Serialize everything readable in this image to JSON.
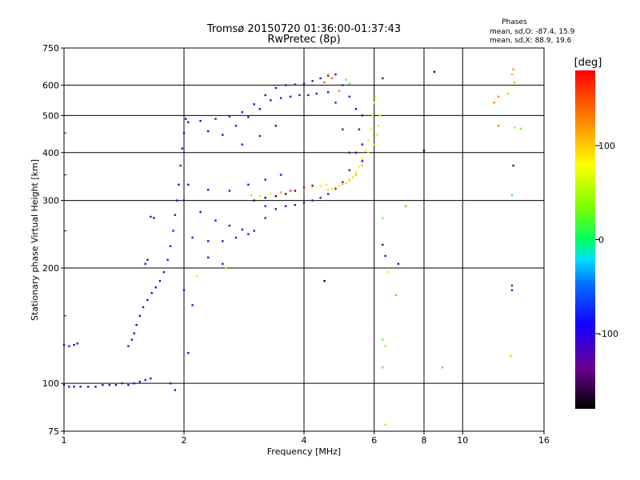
{
  "title": {
    "line1": "Tromsø 20150720 01:36:00-01:37:43",
    "line2": "RwPretec (8p)"
  },
  "phase_info": {
    "heading": "Phases",
    "line_o": "mean, sd,O: -87.4, 15.9",
    "line_x": "mean, sd,X:  88.9, 19.6"
  },
  "colorbar": {
    "unit": "[deg]",
    "ticks": [
      "100",
      "0",
      "-100"
    ],
    "tick_values": [
      100,
      0,
      -100
    ],
    "range": [
      -180,
      180
    ]
  },
  "chart_data": {
    "type": "scatter",
    "xlabel": "Frequency [MHz]",
    "ylabel": "Stationary phase Virtual Height [km]",
    "x_scale": "log2",
    "y_scale": "log",
    "xlim": [
      1,
      16
    ],
    "ylim": [
      75,
      750
    ],
    "x_ticks": [
      1,
      2,
      4,
      6,
      8,
      10,
      16
    ],
    "x_tick_labels": [
      "1",
      "2",
      "4",
      "6",
      "8",
      "10",
      "16"
    ],
    "y_ticks": [
      75,
      100,
      200,
      300,
      400,
      500,
      600,
      750
    ],
    "y_tick_labels": [
      "75",
      "100",
      "200",
      "300",
      "400",
      "500",
      "600",
      "750"
    ],
    "grid": true,
    "points": [
      {
        "f": 1.0,
        "h": 99,
        "p": -110
      },
      {
        "f": 1.03,
        "h": 98,
        "p": -110
      },
      {
        "f": 1.06,
        "h": 98,
        "p": -110
      },
      {
        "f": 1.1,
        "h": 98,
        "p": -110
      },
      {
        "f": 1.15,
        "h": 98,
        "p": -110
      },
      {
        "f": 1.2,
        "h": 98,
        "p": -110
      },
      {
        "f": 1.25,
        "h": 99,
        "p": -110
      },
      {
        "f": 1.3,
        "h": 99,
        "p": -110
      },
      {
        "f": 1.35,
        "h": 99,
        "p": -110
      },
      {
        "f": 1.4,
        "h": 100,
        "p": -110
      },
      {
        "f": 1.45,
        "h": 99,
        "p": -110
      },
      {
        "f": 1.5,
        "h": 100,
        "p": -110
      },
      {
        "f": 1.55,
        "h": 101,
        "p": -110
      },
      {
        "f": 1.6,
        "h": 102,
        "p": -110
      },
      {
        "f": 1.65,
        "h": 103,
        "p": -110
      },
      {
        "f": 1.0,
        "h": 126,
        "p": -110
      },
      {
        "f": 1.03,
        "h": 125,
        "p": -110
      },
      {
        "f": 1.06,
        "h": 126,
        "p": -110
      },
      {
        "f": 1.08,
        "h": 127,
        "p": -110
      },
      {
        "f": 1.45,
        "h": 125,
        "p": -110
      },
      {
        "f": 1.48,
        "h": 130,
        "p": -110
      },
      {
        "f": 1.5,
        "h": 135,
        "p": -110
      },
      {
        "f": 1.52,
        "h": 142,
        "p": -110
      },
      {
        "f": 1.55,
        "h": 150,
        "p": -110
      },
      {
        "f": 1.58,
        "h": 158,
        "p": -110
      },
      {
        "f": 1.62,
        "h": 165,
        "p": -110
      },
      {
        "f": 1.66,
        "h": 172,
        "p": -110
      },
      {
        "f": 1.7,
        "h": 178,
        "p": -110
      },
      {
        "f": 1.74,
        "h": 185,
        "p": -110
      },
      {
        "f": 1.78,
        "h": 195,
        "p": -110
      },
      {
        "f": 1.82,
        "h": 210,
        "p": -110
      },
      {
        "f": 1.85,
        "h": 228,
        "p": -110
      },
      {
        "f": 1.88,
        "h": 250,
        "p": -110
      },
      {
        "f": 1.9,
        "h": 275,
        "p": -110
      },
      {
        "f": 1.92,
        "h": 300,
        "p": -110
      },
      {
        "f": 1.94,
        "h": 330,
        "p": -110
      },
      {
        "f": 1.96,
        "h": 370,
        "p": -110
      },
      {
        "f": 1.98,
        "h": 410,
        "p": -110
      },
      {
        "f": 2.0,
        "h": 450,
        "p": -110
      },
      {
        "f": 2.02,
        "h": 490,
        "p": -110
      },
      {
        "f": 1.6,
        "h": 205,
        "p": -110
      },
      {
        "f": 1.62,
        "h": 210,
        "p": -110
      },
      {
        "f": 1.65,
        "h": 272,
        "p": -110
      },
      {
        "f": 1.68,
        "h": 270,
        "p": -110
      },
      {
        "f": 2.05,
        "h": 480,
        "p": -110
      },
      {
        "f": 2.2,
        "h": 484,
        "p": -110
      },
      {
        "f": 2.4,
        "h": 490,
        "p": -110
      },
      {
        "f": 2.6,
        "h": 497,
        "p": -110
      },
      {
        "f": 2.8,
        "h": 510,
        "p": -110
      },
      {
        "f": 3.0,
        "h": 535,
        "p": -110
      },
      {
        "f": 3.2,
        "h": 565,
        "p": -110
      },
      {
        "f": 3.4,
        "h": 590,
        "p": -110
      },
      {
        "f": 3.6,
        "h": 600,
        "p": -110
      },
      {
        "f": 3.8,
        "h": 602,
        "p": -110
      },
      {
        "f": 4.0,
        "h": 605,
        "p": -110
      },
      {
        "f": 4.2,
        "h": 615,
        "p": -110
      },
      {
        "f": 4.4,
        "h": 625,
        "p": -110
      },
      {
        "f": 4.6,
        "h": 635,
        "p": -110
      },
      {
        "f": 4.8,
        "h": 640,
        "p": -110
      },
      {
        "f": 5.0,
        "h": 600,
        "p": -110
      },
      {
        "f": 5.2,
        "h": 560,
        "p": -110
      },
      {
        "f": 5.4,
        "h": 520,
        "p": -110
      },
      {
        "f": 5.5,
        "h": 460,
        "p": -120
      },
      {
        "f": 5.6,
        "h": 420,
        "p": -120
      },
      {
        "f": 5.6,
        "h": 380,
        "p": -120
      },
      {
        "f": 2.3,
        "h": 455,
        "p": -110
      },
      {
        "f": 2.5,
        "h": 445,
        "p": -110
      },
      {
        "f": 2.7,
        "h": 470,
        "p": -110
      },
      {
        "f": 2.9,
        "h": 495,
        "p": -110
      },
      {
        "f": 3.1,
        "h": 520,
        "p": -110
      },
      {
        "f": 3.3,
        "h": 548,
        "p": -110
      },
      {
        "f": 3.5,
        "h": 555,
        "p": -120
      },
      {
        "f": 3.7,
        "h": 560,
        "p": -120
      },
      {
        "f": 3.9,
        "h": 565,
        "p": -120
      },
      {
        "f": 4.1,
        "h": 565,
        "p": -120
      },
      {
        "f": 4.3,
        "h": 570,
        "p": -120
      },
      {
        "f": 4.6,
        "h": 575,
        "p": -120
      },
      {
        "f": 4.8,
        "h": 540,
        "p": -120
      },
      {
        "f": 5.0,
        "h": 460,
        "p": -130
      },
      {
        "f": 5.2,
        "h": 400,
        "p": -140
      },
      {
        "f": 2.0,
        "h": 300,
        "p": -110
      },
      {
        "f": 2.2,
        "h": 280,
        "p": -110
      },
      {
        "f": 2.4,
        "h": 266,
        "p": -110
      },
      {
        "f": 2.6,
        "h": 258,
        "p": -120
      },
      {
        "f": 2.8,
        "h": 252,
        "p": -120
      },
      {
        "f": 3.0,
        "h": 250,
        "p": -120
      },
      {
        "f": 3.2,
        "h": 270,
        "p": -130
      },
      {
        "f": 3.4,
        "h": 285,
        "p": -130
      },
      {
        "f": 3.6,
        "h": 290,
        "p": -130
      },
      {
        "f": 3.8,
        "h": 292,
        "p": -120
      },
      {
        "f": 4.0,
        "h": 296,
        "p": -120
      },
      {
        "f": 4.2,
        "h": 300,
        "p": -120
      },
      {
        "f": 4.4,
        "h": 305,
        "p": -130
      },
      {
        "f": 4.6,
        "h": 312,
        "p": -130
      },
      {
        "f": 4.8,
        "h": 322,
        "p": -140
      },
      {
        "f": 5.0,
        "h": 335,
        "p": -140
      },
      {
        "f": 5.2,
        "h": 360,
        "p": -140
      },
      {
        "f": 5.4,
        "h": 400,
        "p": -150
      },
      {
        "f": 5.6,
        "h": 500,
        "p": -150
      },
      {
        "f": 2.1,
        "h": 240,
        "p": -110
      },
      {
        "f": 2.3,
        "h": 235,
        "p": -110
      },
      {
        "f": 2.5,
        "h": 235,
        "p": -110
      },
      {
        "f": 2.7,
        "h": 240,
        "p": -110
      },
      {
        "f": 2.9,
        "h": 245,
        "p": -110
      },
      {
        "f": 3.2,
        "h": 290,
        "p": -120
      },
      {
        "f": 2.05,
        "h": 330,
        "p": -110
      },
      {
        "f": 2.3,
        "h": 320,
        "p": -110
      },
      {
        "f": 2.6,
        "h": 318,
        "p": -110
      },
      {
        "f": 2.9,
        "h": 330,
        "p": -110
      },
      {
        "f": 3.2,
        "h": 340,
        "p": -110
      },
      {
        "f": 3.5,
        "h": 350,
        "p": -110
      },
      {
        "f": 3.0,
        "h": 300,
        "p": -150
      },
      {
        "f": 3.2,
        "h": 305,
        "p": -160
      },
      {
        "f": 3.4,
        "h": 308,
        "p": -160
      },
      {
        "f": 3.6,
        "h": 312,
        "p": -150
      },
      {
        "f": 3.8,
        "h": 318,
        "p": -150
      },
      {
        "f": 4.0,
        "h": 324,
        "p": -150
      },
      {
        "f": 4.2,
        "h": 328,
        "p": -150
      },
      {
        "f": 2.95,
        "h": 310,
        "p": 40
      },
      {
        "f": 3.1,
        "h": 308,
        "p": 60
      },
      {
        "f": 3.3,
        "h": 312,
        "p": 80
      },
      {
        "f": 3.5,
        "h": 315,
        "p": 120
      },
      {
        "f": 3.7,
        "h": 318,
        "p": 150
      },
      {
        "f": 4.0,
        "h": 322,
        "p": 140
      },
      {
        "f": 4.2,
        "h": 325,
        "p": 100
      },
      {
        "f": 4.4,
        "h": 328,
        "p": 90
      },
      {
        "f": 4.55,
        "h": 330,
        "p": 90
      },
      {
        "f": 4.6,
        "h": 320,
        "p": 90
      },
      {
        "f": 4.7,
        "h": 322,
        "p": 92
      },
      {
        "f": 4.8,
        "h": 325,
        "p": 93
      },
      {
        "f": 4.9,
        "h": 328,
        "p": 95
      },
      {
        "f": 5.0,
        "h": 330,
        "p": 95
      },
      {
        "f": 5.1,
        "h": 333,
        "p": 95
      },
      {
        "f": 5.2,
        "h": 338,
        "p": 94
      },
      {
        "f": 5.3,
        "h": 345,
        "p": 94
      },
      {
        "f": 5.4,
        "h": 355,
        "p": 92
      },
      {
        "f": 5.5,
        "h": 368,
        "p": 90
      },
      {
        "f": 5.6,
        "h": 385,
        "p": 90
      },
      {
        "f": 5.7,
        "h": 405,
        "p": 88
      },
      {
        "f": 5.8,
        "h": 430,
        "p": 85
      },
      {
        "f": 5.9,
        "h": 460,
        "p": 85
      },
      {
        "f": 5.95,
        "h": 500,
        "p": 80
      },
      {
        "f": 6.0,
        "h": 540,
        "p": 80
      },
      {
        "f": 6.05,
        "h": 560,
        "p": 85
      },
      {
        "f": 5.2,
        "h": 340,
        "p": 100
      },
      {
        "f": 5.4,
        "h": 350,
        "p": 110
      },
      {
        "f": 5.6,
        "h": 370,
        "p": 110
      },
      {
        "f": 5.8,
        "h": 400,
        "p": 95
      },
      {
        "f": 6.0,
        "h": 420,
        "p": 95
      },
      {
        "f": 6.1,
        "h": 445,
        "p": 90
      },
      {
        "f": 6.15,
        "h": 470,
        "p": 90
      },
      {
        "f": 6.2,
        "h": 500,
        "p": 90
      },
      {
        "f": 4.6,
        "h": 640,
        "p": 120
      },
      {
        "f": 4.7,
        "h": 625,
        "p": 140
      },
      {
        "f": 4.5,
        "h": 610,
        "p": 150
      },
      {
        "f": 4.9,
        "h": 580,
        "p": 130
      },
      {
        "f": 5.1,
        "h": 620,
        "p": 10
      },
      {
        "f": 5.2,
        "h": 605,
        "p": 20
      },
      {
        "f": 6.3,
        "h": 270,
        "p": 20
      },
      {
        "f": 6.3,
        "h": 230,
        "p": -150
      },
      {
        "f": 6.4,
        "h": 215,
        "p": -110
      },
      {
        "f": 6.5,
        "h": 195,
        "p": 90
      },
      {
        "f": 6.3,
        "h": 130,
        "p": 20
      },
      {
        "f": 6.3,
        "h": 110,
        "p": 20
      },
      {
        "f": 6.4,
        "h": 125,
        "p": 100
      },
      {
        "f": 6.4,
        "h": 78,
        "p": 100
      },
      {
        "f": 6.8,
        "h": 170,
        "p": 120
      },
      {
        "f": 6.9,
        "h": 205,
        "p": -150
      },
      {
        "f": 6.3,
        "h": 625,
        "p": -150
      },
      {
        "f": 7.2,
        "h": 290,
        "p": 120
      },
      {
        "f": 4.5,
        "h": 185,
        "p": -170
      },
      {
        "f": 8.0,
        "h": 405,
        "p": -170
      },
      {
        "f": 8.5,
        "h": 650,
        "p": -160
      },
      {
        "f": 8.9,
        "h": 110,
        "p": 10
      },
      {
        "f": 12.0,
        "h": 540,
        "p": 130
      },
      {
        "f": 12.3,
        "h": 560,
        "p": 130
      },
      {
        "f": 12.3,
        "h": 470,
        "p": 130
      },
      {
        "f": 13.0,
        "h": 570,
        "p": 100
      },
      {
        "f": 13.3,
        "h": 640,
        "p": 110
      },
      {
        "f": 13.4,
        "h": 660,
        "p": 120
      },
      {
        "f": 13.5,
        "h": 610,
        "p": 120
      },
      {
        "f": 13.5,
        "h": 465,
        "p": 40
      },
      {
        "f": 14.0,
        "h": 462,
        "p": 30
      },
      {
        "f": 13.4,
        "h": 370,
        "p": -150
      },
      {
        "f": 13.3,
        "h": 310,
        "p": 10
      },
      {
        "f": 13.3,
        "h": 180,
        "p": -130
      },
      {
        "f": 13.3,
        "h": 175,
        "p": -130
      },
      {
        "f": 13.2,
        "h": 118,
        "p": 100
      },
      {
        "f": 1.85,
        "h": 100,
        "p": -110
      },
      {
        "f": 1.9,
        "h": 96,
        "p": -110
      },
      {
        "f": 2.05,
        "h": 120,
        "p": -110
      },
      {
        "f": 2.15,
        "h": 190,
        "p": 90
      },
      {
        "f": 2.0,
        "h": 175,
        "p": -110
      },
      {
        "f": 2.1,
        "h": 160,
        "p": -110
      },
      {
        "f": 2.3,
        "h": 213,
        "p": -110
      },
      {
        "f": 2.55,
        "h": 200,
        "p": 40
      },
      {
        "f": 2.5,
        "h": 205,
        "p": -110
      },
      {
        "f": 3.4,
        "h": 470,
        "p": -150
      },
      {
        "f": 3.1,
        "h": 442,
        "p": -130
      },
      {
        "f": 2.8,
        "h": 420,
        "p": -110
      }
    ]
  }
}
